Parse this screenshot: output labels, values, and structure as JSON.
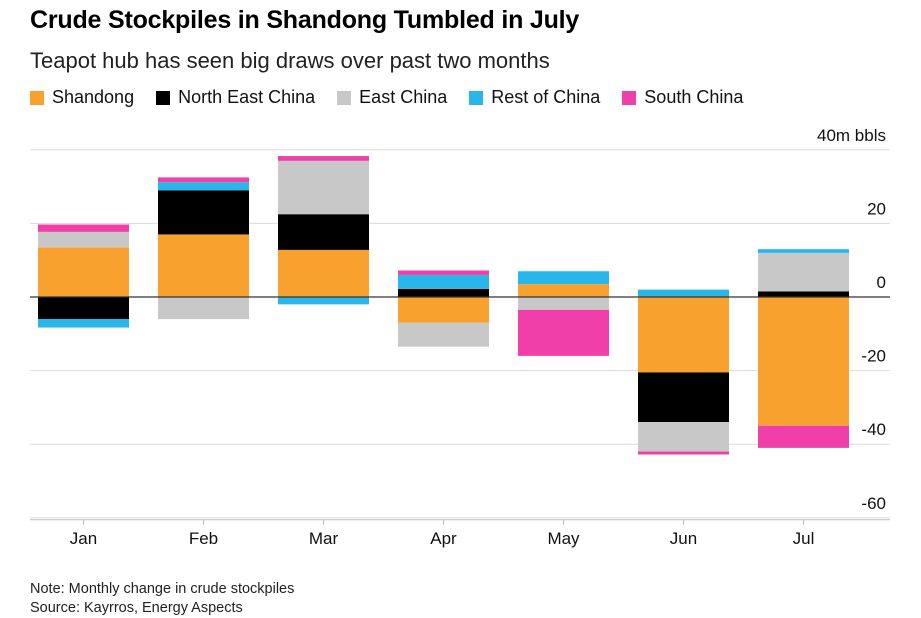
{
  "header": {
    "title": "Crude Stockpiles in Shandong Tumbled in July",
    "subtitle": "Teapot hub has seen big draws over past two months"
  },
  "footer": {
    "note": "Note: Monthly change in crude stockpiles",
    "source": "Source: Kayrros, Energy Aspects"
  },
  "chart_data": {
    "type": "bar",
    "stacked": true,
    "title": "Crude Stockpiles in Shandong Tumbled in July",
    "subtitle": "Teapot hub has seen big draws over past two months",
    "unit_label": "40m bbls",
    "categories": [
      "Jan",
      "Feb",
      "Mar",
      "Apr",
      "May",
      "Jun",
      "Jul"
    ],
    "ylim": [
      -60,
      40
    ],
    "yticks": [
      40,
      20,
      0,
      -20,
      -40,
      -60
    ],
    "ytick_labels": [
      "40m bbls",
      "20",
      "0",
      "-20",
      "-40",
      "-60"
    ],
    "grid": true,
    "legend_position": "top-left",
    "series": [
      {
        "name": "Shandong",
        "color": "#F9A12E",
        "values": [
          13.5,
          17,
          12.8,
          -7,
          3.5,
          -20.5,
          -35
        ]
      },
      {
        "name": "North East China",
        "color": "#000000",
        "values": [
          -6,
          12,
          9.7,
          2.2,
          0,
          -13.5,
          1.5
        ]
      },
      {
        "name": "East China",
        "color": "#C8C8C8",
        "values": [
          4.2,
          -6,
          14.5,
          -6.5,
          -3.5,
          -8,
          10.5
        ]
      },
      {
        "name": "Rest of China",
        "color": "#29B6E8",
        "values": [
          -2.3,
          2.2,
          -2,
          3.8,
          3.5,
          2,
          1
        ]
      },
      {
        "name": "South China",
        "color": "#F03FA8",
        "values": [
          2,
          1.3,
          1.3,
          1.2,
          -12.5,
          -0.8,
          -6
        ]
      }
    ]
  }
}
